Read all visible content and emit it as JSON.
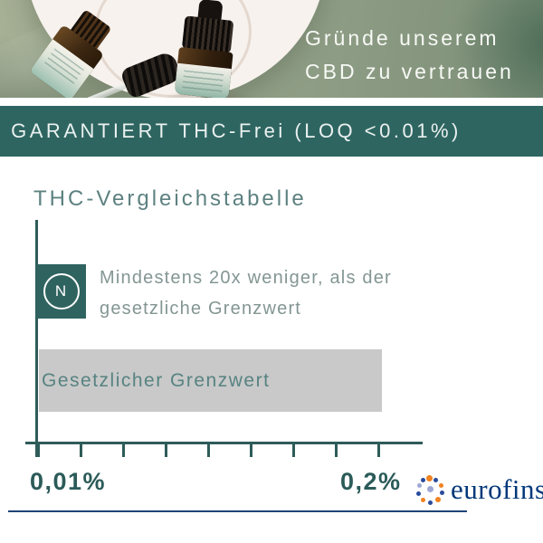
{
  "banner": {
    "headline_line1": "Gründe unserem",
    "headline_line2": "CBD zu vertrauen"
  },
  "guarantee_band": {
    "text": "GARANTIERT THC-Frei (LOQ <0.01%)"
  },
  "chart": {
    "title": "THC-Vergleichstabelle",
    "n_badge_letter": "N",
    "annotation_line1": "Mindestens 20x weniger, als der",
    "annotation_line2": "gesetzliche Grenzwert",
    "legal_bar_label": "Gesetzlicher Grenzwert",
    "axis_label_min": "0,01%",
    "axis_label_max": "0,2%"
  },
  "chart_data": {
    "type": "bar",
    "orientation": "horizontal",
    "title": "THC-Vergleichstabelle",
    "categories": [
      "N (CBD-Produkt, LOQ <0.01%)",
      "Gesetzlicher Grenzwert"
    ],
    "values": [
      0.01,
      0.2
    ],
    "unit": "%",
    "x_tick_labels": [
      "0,01%",
      "0,2%"
    ],
    "xlim": [
      0,
      0.21
    ],
    "tick_count": 9,
    "grid": false,
    "legend": false,
    "annotations": [
      "Mindestens 20x weniger, als der gesetzliche Grenzwert"
    ]
  },
  "footer": {
    "logo_text": "eurofins"
  },
  "colors": {
    "teal_band": "#2e6561",
    "teal_bar": "#2f6360",
    "axis": "#2e5c59",
    "gray_bar": "#c9c9c9",
    "bar_label": "#578381",
    "annotation_text": "#839693",
    "tick_label": "#2b5b59",
    "eurofins_blue": "#00387a",
    "logo_orange": "#f08222",
    "logo_blue": "#2a4b9b",
    "logo_lavender": "#9fa8d5",
    "divider": "#1f4377"
  }
}
